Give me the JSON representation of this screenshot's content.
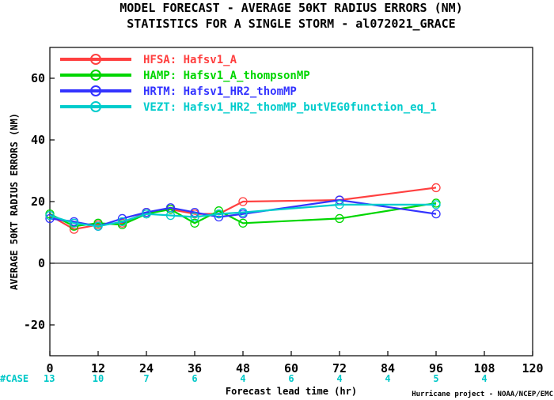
{
  "chart_data": {
    "type": "line",
    "title": "MODEL FORECAST - AVERAGE 50KT RADIUS ERRORS (NM)",
    "subtitle": "STATISTICS FOR A SINGLE STORM - al072021_GRACE",
    "xlabel": "Forecast lead time (hr)",
    "ylabel": "AVERAGE 50KT RADIUS ERRORS (NM)",
    "xlim": [
      0,
      120
    ],
    "ylim": [
      -30,
      70
    ],
    "xticks": [
      "0",
      "12",
      "24",
      "36",
      "48",
      "60",
      "72",
      "84",
      "96",
      "108",
      "120"
    ],
    "yticks": [
      "-20",
      "0",
      "20",
      "40",
      "60"
    ],
    "grid": false,
    "legend_position": "top-left",
    "zero_line": true,
    "case_label": "#CASE",
    "case_counts": [
      {
        "x": 0,
        "label": "13"
      },
      {
        "x": 12,
        "label": "10"
      },
      {
        "x": 24,
        "label": "7"
      },
      {
        "x": 36,
        "label": "6"
      },
      {
        "x": 48,
        "label": "4"
      },
      {
        "x": 60,
        "label": "6"
      },
      {
        "x": 72,
        "label": "4"
      },
      {
        "x": 84,
        "label": "4"
      },
      {
        "x": 96,
        "label": "5"
      },
      {
        "x": 108,
        "label": "4"
      }
    ],
    "credit": "Hurricane project - NOAA/NCEP/EMC",
    "series": [
      {
        "name": "HFSA: Hafsv1_A",
        "color": "#ff4040",
        "points": [
          [
            0,
            15.5
          ],
          [
            6,
            11
          ],
          [
            12,
            12.5
          ],
          [
            18,
            13
          ],
          [
            24,
            16.5
          ],
          [
            30,
            17.5
          ],
          [
            36,
            16
          ],
          [
            42,
            16
          ],
          [
            48,
            20
          ],
          [
            72,
            20.5
          ],
          [
            96,
            24.5
          ]
        ]
      },
      {
        "name": "HAMP: Hafsv1_A_thompsonMP",
        "color": "#00d600",
        "points": [
          [
            0,
            16
          ],
          [
            6,
            12
          ],
          [
            12,
            13
          ],
          [
            18,
            12.5
          ],
          [
            24,
            16
          ],
          [
            30,
            17.5
          ],
          [
            36,
            13
          ],
          [
            42,
            17
          ],
          [
            48,
            13
          ],
          [
            72,
            14.5
          ],
          [
            96,
            19.5
          ]
        ]
      },
      {
        "name": "HRTM: Hafsv1_HR2_thomMP",
        "color": "#3333ff",
        "points": [
          [
            0,
            14.5
          ],
          [
            6,
            13.5
          ],
          [
            12,
            12
          ],
          [
            18,
            14.5
          ],
          [
            24,
            16.5
          ],
          [
            30,
            18
          ],
          [
            36,
            16.5
          ],
          [
            42,
            15
          ],
          [
            48,
            16
          ],
          [
            72,
            20.5
          ],
          [
            96,
            16
          ]
        ]
      },
      {
        "name": "VEZT: Hafsv1_HR2_thomMP_butVEG0function_eq_1",
        "color": "#00cccc",
        "points": [
          [
            0,
            15.5
          ],
          [
            6,
            13
          ],
          [
            12,
            12
          ],
          [
            18,
            13.5
          ],
          [
            24,
            16
          ],
          [
            30,
            15.5
          ],
          [
            36,
            15
          ],
          [
            42,
            16
          ],
          [
            48,
            16.5
          ],
          [
            72,
            19
          ],
          [
            96,
            19
          ]
        ]
      }
    ]
  }
}
